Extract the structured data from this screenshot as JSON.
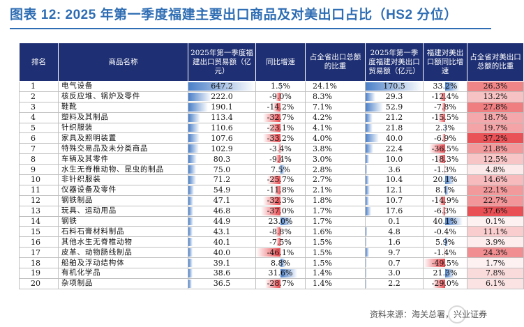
{
  "title": "图表 12: 2025 年第一季度福建主要出口商品及对美出口占比（HS2 分位）",
  "headers": [
    "排名",
    "商品名称",
    "2025年第一季度福建出口贸易额（亿元）",
    "同比增速",
    "占全省出口总额的比重",
    "2025年第一季度福建对美出口贸易额（亿元）",
    "福建对美出口额同比增速",
    "占全省对美出口总额的比重"
  ],
  "colors": {
    "header_bg": "#1e2f73",
    "title": "#2e6db3",
    "bar_blue": "#4a7fc8",
    "bar_red": "#e8474c",
    "heat_red": "#e8474c"
  },
  "rows": [
    {
      "rank": "1",
      "name": "电气设备",
      "export": "647.2",
      "yoy": "1.5%",
      "share": "24.1%",
      "us_export": "170.5",
      "us_yoy": "33.2%",
      "us_share": "26.3%"
    },
    {
      "rank": "2",
      "name": "核反应堆、锅炉及零件",
      "export": "222.0",
      "yoy": "-9.0%",
      "share": "8.3%",
      "us_export": "29.3",
      "us_yoy": "-12.4%",
      "us_share": "13.2%"
    },
    {
      "rank": "3",
      "name": "鞋靴",
      "export": "190.1",
      "yoy": "-14.2%",
      "share": "7.1%",
      "us_export": "52.9",
      "us_yoy": "-7.8%",
      "us_share": "27.8%"
    },
    {
      "rank": "4",
      "name": "塑料及其制品",
      "export": "113.4",
      "yoy": "-32.7%",
      "share": "4.2%",
      "us_export": "21.2",
      "us_yoy": "-15.5%",
      "us_share": "18.7%"
    },
    {
      "rank": "5",
      "name": "针织服装",
      "export": "110.6",
      "yoy": "-23.1%",
      "share": "4.1%",
      "us_export": "21.8",
      "us_yoy": "2.3%",
      "us_share": "19.7%"
    },
    {
      "rank": "6",
      "name": "家具及照明装置",
      "export": "107.6",
      "yoy": "-33.2%",
      "share": "4.0%",
      "us_export": "40.0",
      "us_yoy": "-6.9%",
      "us_share": "37.2%"
    },
    {
      "rank": "7",
      "name": "特殊交易品及未分类商品",
      "export": "102.9",
      "yoy": "-3.4%",
      "share": "3.8%",
      "us_export": "22.4",
      "us_yoy": "-36.5%",
      "us_share": "21.8%"
    },
    {
      "rank": "8",
      "name": "车辆及其零件",
      "export": "80.3",
      "yoy": "-9.4%",
      "share": "3.0%",
      "us_export": "10.0",
      "us_yoy": "-18.3%",
      "us_share": "12.5%"
    },
    {
      "rank": "9",
      "name": "水生无脊椎动物、昆虫的制品",
      "export": "75.0",
      "yoy": "7.5%",
      "share": "2.8%",
      "us_export": "3.6",
      "us_yoy": "-1.3%",
      "us_share": "4.8%"
    },
    {
      "rank": "10",
      "name": "非针织服装",
      "export": "71.2",
      "yoy": "-25.7%",
      "share": "2.7%",
      "us_export": "10.4",
      "us_yoy": "20.1%",
      "us_share": "14.6%"
    },
    {
      "rank": "11",
      "name": "仪器设备及零件",
      "export": "54.9",
      "yoy": "-11.8%",
      "share": "2.1%",
      "us_export": "12.1",
      "us_yoy": "8.1%",
      "us_share": "22.1%"
    },
    {
      "rank": "12",
      "name": "钢铁制品",
      "export": "47.1",
      "yoy": "-32.3%",
      "share": "1.8%",
      "us_export": "10.7",
      "us_yoy": "-14.9%",
      "us_share": "22.7%"
    },
    {
      "rank": "13",
      "name": "玩具、运动用品",
      "export": "46.8",
      "yoy": "-37.0%",
      "share": "1.7%",
      "us_export": "17.6",
      "us_yoy": "-6.3%",
      "us_share": "37.6%"
    },
    {
      "rank": "14",
      "name": "钢铁",
      "export": "44.9",
      "yoy": "23.0%",
      "share": "1.7%",
      "us_export": "0.1",
      "us_yoy": "40.1%",
      "us_share": "0.1%"
    },
    {
      "rank": "15",
      "name": "石料石膏材料制品",
      "export": "43.1",
      "yoy": "-8.8%",
      "share": "1.6%",
      "us_export": "4.8",
      "us_yoy": "-0.4%",
      "us_share": "11.1%"
    },
    {
      "rank": "16",
      "name": "其他水生无脊椎动物",
      "export": "40.1",
      "yoy": "-7.5%",
      "share": "1.5%",
      "us_export": "1.6",
      "us_yoy": "5.9%",
      "us_share": "3.9%"
    },
    {
      "rank": "17",
      "name": "皮革、动物肠线制品",
      "export": "40.0",
      "yoy": "-46.1%",
      "share": "1.5%",
      "us_export": "9.7",
      "us_yoy": "-1.4%",
      "us_share": "24.3%"
    },
    {
      "rank": "18",
      "name": "船舶及浮动结构体",
      "export": "39.1",
      "yoy": "8.8%",
      "share": "1.5%",
      "us_export": "0.7",
      "us_yoy": "-49.5%",
      "us_share": "1.7%"
    },
    {
      "rank": "19",
      "name": "有机化学品",
      "export": "38.6",
      "yoy": "31.6%",
      "share": "1.4%",
      "us_export": "3.0",
      "us_yoy": "21.3%",
      "us_share": "7.8%"
    },
    {
      "rank": "20",
      "name": "杂项制品",
      "export": "36.5",
      "yoy": "-28.7%",
      "share": "1.4%",
      "us_export": "2.2",
      "us_yoy": "-29.0%",
      "us_share": "6.1%"
    }
  ],
  "source": "资料来源：海关总署，兴业证券"
}
